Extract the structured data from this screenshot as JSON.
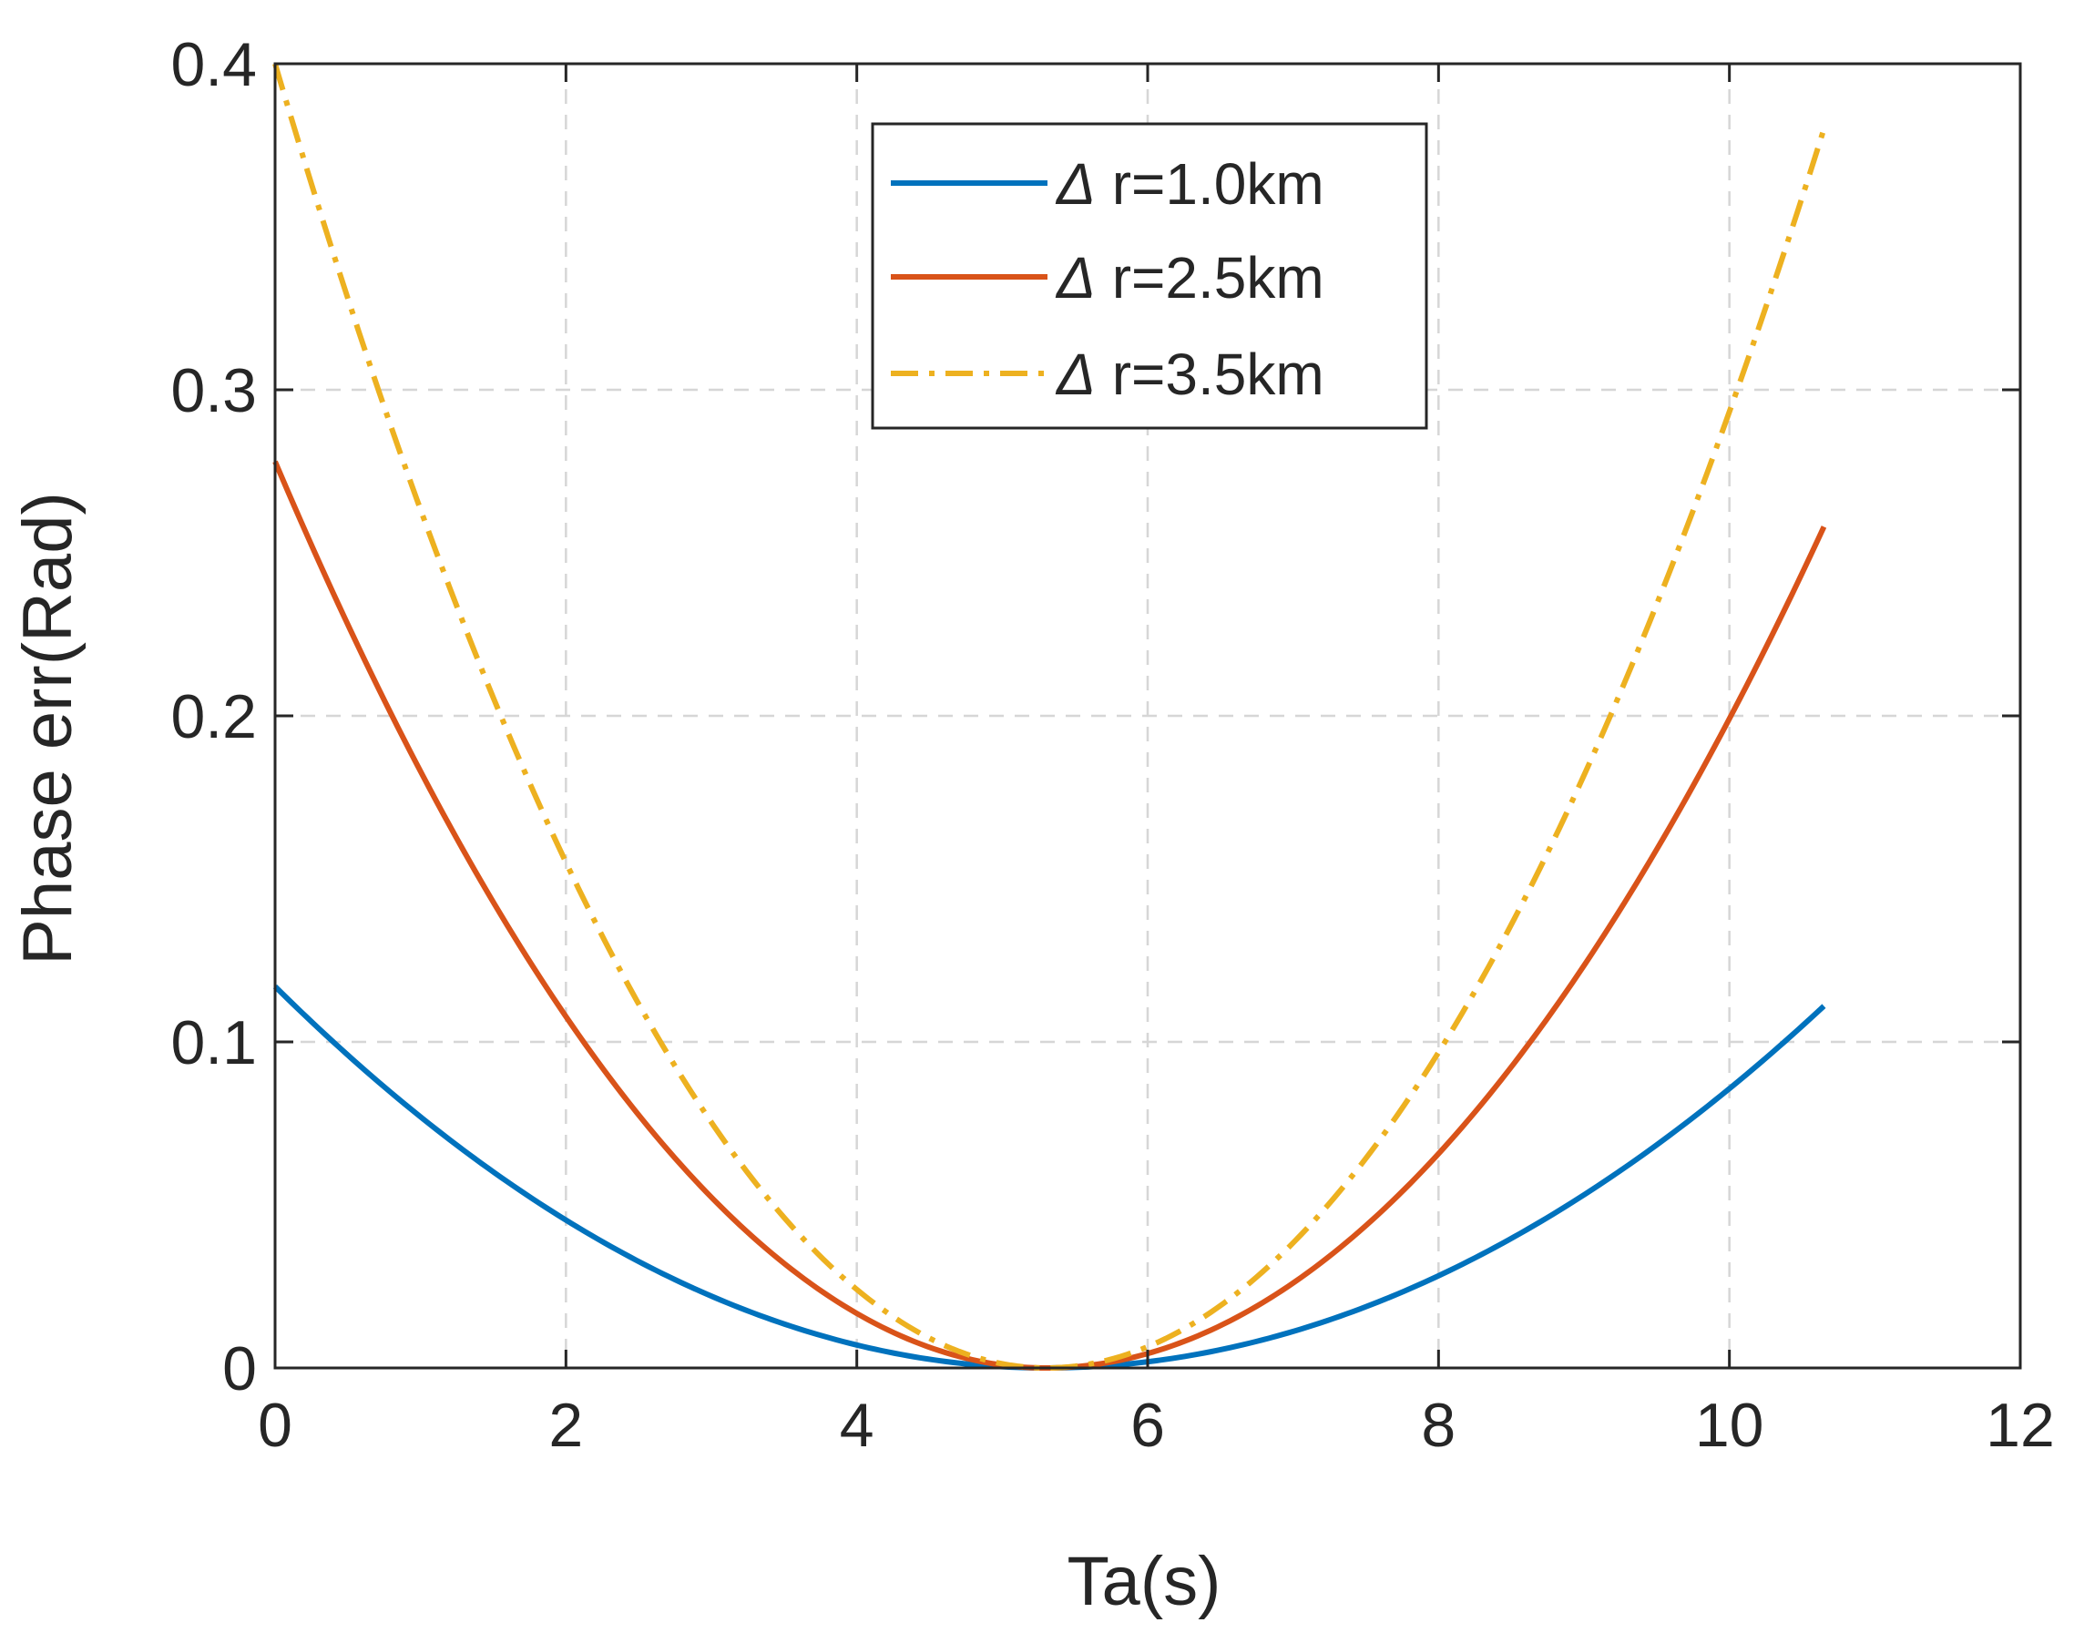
{
  "chart_data": {
    "type": "line",
    "title": "",
    "xlabel": "Ta(s)",
    "ylabel": "Phase err(Rad)",
    "xlim": [
      0,
      12
    ],
    "ylim": [
      0,
      0.4
    ],
    "xticks": [
      0,
      2,
      4,
      6,
      8,
      10,
      12
    ],
    "yticks": [
      0,
      0.1,
      0.2,
      0.3,
      0.4
    ],
    "xtick_labels": [
      "0",
      "2",
      "4",
      "6",
      "8",
      "10",
      "12"
    ],
    "ytick_labels": [
      "0",
      "0.1",
      "0.2",
      "0.3",
      "0.4"
    ],
    "grid": true,
    "legend_position": "top-center",
    "series": [
      {
        "name": "Δ r=1.0km",
        "legend_symbol": "Δ",
        "legend_rest": " r=1.0km",
        "color": "#0072BD",
        "style": "solid",
        "x": [
          0,
          1,
          2,
          3,
          4,
          5,
          5.3,
          6,
          7,
          8,
          9,
          10,
          10.65
        ],
        "y": [
          0.117,
          0.076,
          0.043,
          0.019,
          0.005,
          0.0003,
          0,
          0.002,
          0.011,
          0.029,
          0.055,
          0.089,
          0.111
        ]
      },
      {
        "name": "Δ r=2.5km",
        "legend_symbol": "Δ",
        "legend_rest": " r=2.5km",
        "color": "#D95319",
        "style": "solid",
        "x": [
          0,
          1,
          2,
          3,
          4,
          5,
          5.3,
          6,
          7,
          8,
          9,
          10,
          10.65
        ],
        "y": [
          0.278,
          0.181,
          0.103,
          0.046,
          0.011,
          0.0008,
          0,
          0.005,
          0.026,
          0.068,
          0.129,
          0.209,
          0.258
        ]
      },
      {
        "name": "Δ r=3.5km",
        "legend_symbol": "Δ",
        "legend_rest": " r=3.5km",
        "color": "#EDB120",
        "style": "dash-dot",
        "x": [
          0,
          1,
          2,
          3,
          4,
          5,
          5.3,
          6,
          7,
          8,
          9,
          10,
          10.65
        ],
        "y": [
          0.4,
          0.259,
          0.146,
          0.064,
          0.016,
          0.0009,
          0,
          0.007,
          0.039,
          0.101,
          0.193,
          0.313,
          0.38
        ]
      }
    ]
  }
}
